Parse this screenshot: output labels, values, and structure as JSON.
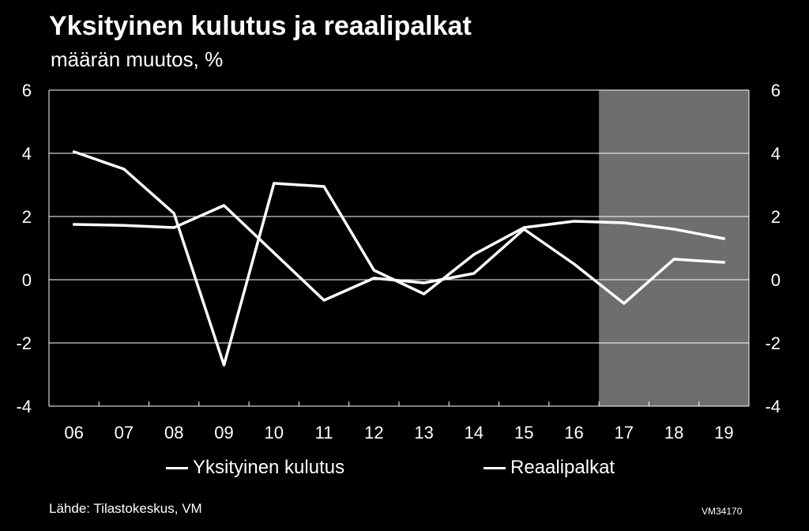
{
  "title": "Yksityinen kulutus ja reaalipalkat",
  "subtitle": "määrän muutos, %",
  "source": "Lähde: Tilastokeskus, VM",
  "code": "VM34170",
  "colors": {
    "background": "#000000",
    "line": "#ffffff",
    "forecast_shade": "#6e6e6e",
    "grid": "#ffffff"
  },
  "chart_data": {
    "type": "line",
    "categories": [
      "06",
      "07",
      "08",
      "09",
      "10",
      "11",
      "12",
      "13",
      "14",
      "15",
      "16",
      "17",
      "18",
      "19"
    ],
    "ylim": [
      -4,
      6
    ],
    "yticks": [
      -4,
      -2,
      0,
      2,
      4,
      6
    ],
    "ytick_labels": [
      "-4",
      "-2",
      "0",
      "2",
      "4",
      "6"
    ],
    "grid": true,
    "forecast_shade_from": "17",
    "legend_placement": "bottom",
    "series": [
      {
        "name": "Yksityinen kulutus",
        "values": [
          4.05,
          3.5,
          2.1,
          -2.7,
          3.05,
          2.95,
          0.3,
          -0.45,
          0.8,
          1.65,
          1.85,
          1.8,
          1.6,
          1.3
        ]
      },
      {
        "name": "Reaalipalkat",
        "values": [
          1.75,
          1.72,
          1.65,
          2.35,
          0.85,
          -0.65,
          0.05,
          -0.1,
          0.2,
          1.6,
          0.5,
          -0.75,
          0.65,
          0.55
        ]
      }
    ]
  }
}
